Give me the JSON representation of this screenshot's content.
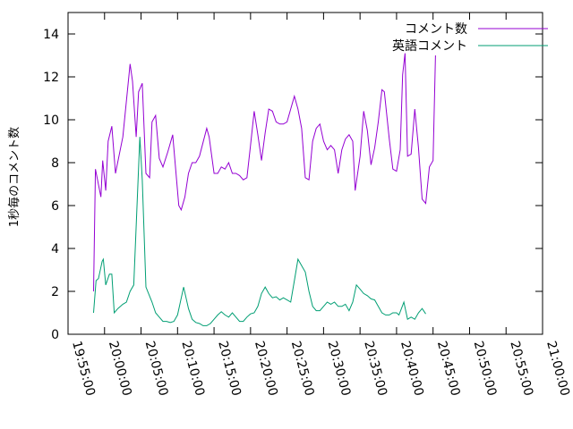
{
  "chart_data": {
    "type": "line",
    "title": "",
    "xlabel": "",
    "ylabel": "1秒毎のコメント数",
    "x_time_range": [
      "19:55:00",
      "21:00:00"
    ],
    "ylim": [
      0,
      15
    ],
    "yticks": [
      0,
      2,
      4,
      6,
      8,
      10,
      12,
      14
    ],
    "xticks": [
      "19:55:00",
      "20:00:00",
      "20:05:00",
      "20:10:00",
      "20:15:00",
      "20:20:00",
      "20:25:00",
      "20:30:00",
      "20:35:00",
      "20:40:00",
      "20:45:00",
      "20:50:00",
      "20:55:00",
      "21:00:00"
    ],
    "grid": false,
    "legend_position": "top-right",
    "series": [
      {
        "name": "コメント数",
        "color": "#9400d3",
        "points": [
          [
            "19:58:30",
            2.0
          ],
          [
            "19:58:45",
            7.7
          ],
          [
            "19:59:30",
            6.4
          ],
          [
            "19:59:45",
            8.1
          ],
          [
            "20:00:10",
            6.7
          ],
          [
            "20:00:30",
            9.0
          ],
          [
            "20:01:00",
            9.7
          ],
          [
            "20:01:30",
            7.5
          ],
          [
            "20:02:30",
            9.2
          ],
          [
            "20:03:30",
            12.6
          ],
          [
            "20:03:50",
            11.8
          ],
          [
            "20:04:20",
            9.2
          ],
          [
            "20:04:40",
            11.3
          ],
          [
            "20:05:10",
            11.7
          ],
          [
            "20:05:40",
            7.5
          ],
          [
            "20:06:10",
            7.3
          ],
          [
            "20:06:30",
            9.9
          ],
          [
            "20:07:00",
            10.2
          ],
          [
            "20:07:30",
            8.2
          ],
          [
            "20:08:00",
            7.8
          ],
          [
            "20:08:40",
            8.5
          ],
          [
            "20:09:20",
            9.3
          ],
          [
            "20:10:10",
            6.0
          ],
          [
            "20:10:30",
            5.8
          ],
          [
            "20:11:00",
            6.4
          ],
          [
            "20:11:30",
            7.5
          ],
          [
            "20:12:00",
            8.0
          ],
          [
            "20:12:30",
            8.0
          ],
          [
            "20:13:00",
            8.3
          ],
          [
            "20:14:00",
            9.6
          ],
          [
            "20:14:20",
            9.2
          ],
          [
            "20:15:00",
            7.5
          ],
          [
            "20:15:30",
            7.5
          ],
          [
            "20:16:00",
            7.8
          ],
          [
            "20:16:30",
            7.7
          ],
          [
            "20:17:00",
            8.0
          ],
          [
            "20:17:30",
            7.5
          ],
          [
            "20:18:00",
            7.5
          ],
          [
            "20:18:30",
            7.4
          ],
          [
            "20:19:00",
            7.2
          ],
          [
            "20:19:30",
            7.3
          ],
          [
            "20:20:00",
            8.8
          ],
          [
            "20:20:30",
            10.4
          ],
          [
            "20:21:00",
            9.3
          ],
          [
            "20:21:30",
            8.1
          ],
          [
            "20:22:00",
            9.4
          ],
          [
            "20:22:30",
            10.5
          ],
          [
            "20:23:00",
            10.4
          ],
          [
            "20:23:30",
            9.9
          ],
          [
            "20:24:00",
            9.8
          ],
          [
            "20:24:30",
            9.8
          ],
          [
            "20:25:00",
            9.9
          ],
          [
            "20:25:30",
            10.5
          ],
          [
            "20:26:00",
            11.1
          ],
          [
            "20:26:30",
            10.5
          ],
          [
            "20:27:00",
            9.6
          ],
          [
            "20:27:30",
            7.3
          ],
          [
            "20:28:00",
            7.2
          ],
          [
            "20:28:30",
            9.0
          ],
          [
            "20:29:00",
            9.6
          ],
          [
            "20:29:30",
            9.8
          ],
          [
            "20:30:00",
            9.0
          ],
          [
            "20:30:30",
            8.6
          ],
          [
            "20:31:00",
            8.8
          ],
          [
            "20:31:30",
            8.6
          ],
          [
            "20:32:00",
            7.5
          ],
          [
            "20:32:30",
            8.6
          ],
          [
            "20:33:00",
            9.1
          ],
          [
            "20:33:30",
            9.3
          ],
          [
            "20:34:00",
            9.0
          ],
          [
            "20:34:20",
            6.7
          ],
          [
            "20:35:00",
            8.3
          ],
          [
            "20:35:30",
            10.4
          ],
          [
            "20:36:00",
            9.5
          ],
          [
            "20:36:30",
            7.9
          ],
          [
            "20:37:00",
            8.7
          ],
          [
            "20:37:30",
            9.9
          ],
          [
            "20:38:00",
            11.4
          ],
          [
            "20:38:20",
            11.3
          ],
          [
            "20:39:00",
            9.1
          ],
          [
            "20:39:30",
            7.7
          ],
          [
            "20:40:00",
            7.6
          ],
          [
            "20:40:30",
            8.6
          ],
          [
            "20:40:50",
            12.1
          ],
          [
            "20:41:10",
            13.1
          ],
          [
            "20:41:30",
            8.3
          ],
          [
            "20:42:00",
            8.4
          ],
          [
            "20:42:30",
            10.5
          ],
          [
            "20:43:00",
            8.7
          ],
          [
            "20:43:30",
            6.3
          ],
          [
            "20:44:00",
            6.1
          ],
          [
            "20:44:30",
            7.8
          ],
          [
            "20:45:00",
            8.1
          ],
          [
            "20:45:20",
            13.0
          ]
        ]
      },
      {
        "name": "英語コメント",
        "color": "#009e73",
        "points": [
          [
            "19:58:30",
            1.0
          ],
          [
            "19:58:50",
            2.5
          ],
          [
            "19:59:10",
            2.6
          ],
          [
            "19:59:40",
            3.4
          ],
          [
            "19:59:50",
            3.5
          ],
          [
            "20:00:10",
            2.3
          ],
          [
            "20:00:40",
            2.8
          ],
          [
            "20:01:00",
            2.8
          ],
          [
            "20:01:20",
            1.0
          ],
          [
            "20:01:50",
            1.2
          ],
          [
            "20:02:30",
            1.4
          ],
          [
            "20:03:00",
            1.5
          ],
          [
            "20:03:30",
            2.0
          ],
          [
            "20:04:00",
            2.3
          ],
          [
            "20:04:50",
            9.2
          ],
          [
            "20:05:10",
            7.2
          ],
          [
            "20:05:40",
            2.2
          ],
          [
            "20:06:30",
            1.5
          ],
          [
            "20:07:00",
            1.0
          ],
          [
            "20:07:30",
            0.8
          ],
          [
            "20:08:00",
            0.6
          ],
          [
            "20:08:30",
            0.6
          ],
          [
            "20:09:00",
            0.55
          ],
          [
            "20:09:30",
            0.6
          ],
          [
            "20:10:00",
            0.9
          ],
          [
            "20:10:50",
            2.2
          ],
          [
            "20:11:30",
            1.2
          ],
          [
            "20:12:00",
            0.7
          ],
          [
            "20:12:30",
            0.55
          ],
          [
            "20:13:00",
            0.5
          ],
          [
            "20:13:30",
            0.4
          ],
          [
            "20:14:00",
            0.4
          ],
          [
            "20:14:30",
            0.5
          ],
          [
            "20:15:00",
            0.7
          ],
          [
            "20:15:30",
            0.9
          ],
          [
            "20:16:00",
            1.05
          ],
          [
            "20:16:30",
            0.9
          ],
          [
            "20:17:00",
            0.8
          ],
          [
            "20:17:30",
            1.0
          ],
          [
            "20:18:00",
            0.8
          ],
          [
            "20:18:30",
            0.6
          ],
          [
            "20:19:00",
            0.6
          ],
          [
            "20:19:30",
            0.8
          ],
          [
            "20:20:00",
            0.95
          ],
          [
            "20:20:30",
            1.0
          ],
          [
            "20:21:00",
            1.3
          ],
          [
            "20:21:30",
            1.9
          ],
          [
            "20:22:00",
            2.2
          ],
          [
            "20:22:30",
            1.9
          ],
          [
            "20:23:00",
            1.7
          ],
          [
            "20:23:30",
            1.75
          ],
          [
            "20:24:00",
            1.6
          ],
          [
            "20:24:30",
            1.7
          ],
          [
            "20:25:00",
            1.6
          ],
          [
            "20:25:30",
            1.5
          ],
          [
            "20:26:00",
            2.5
          ],
          [
            "20:26:30",
            3.5
          ],
          [
            "20:27:00",
            3.2
          ],
          [
            "20:27:30",
            2.9
          ],
          [
            "20:28:00",
            2.0
          ],
          [
            "20:28:30",
            1.3
          ],
          [
            "20:29:00",
            1.1
          ],
          [
            "20:29:30",
            1.1
          ],
          [
            "20:30:00",
            1.3
          ],
          [
            "20:30:30",
            1.5
          ],
          [
            "20:31:00",
            1.4
          ],
          [
            "20:31:30",
            1.5
          ],
          [
            "20:32:00",
            1.3
          ],
          [
            "20:32:30",
            1.3
          ],
          [
            "20:33:00",
            1.4
          ],
          [
            "20:33:30",
            1.1
          ],
          [
            "20:34:00",
            1.5
          ],
          [
            "20:34:30",
            2.3
          ],
          [
            "20:35:00",
            2.1
          ],
          [
            "20:35:30",
            1.9
          ],
          [
            "20:36:00",
            1.8
          ],
          [
            "20:36:30",
            1.65
          ],
          [
            "20:37:00",
            1.6
          ],
          [
            "20:37:30",
            1.3
          ],
          [
            "20:38:00",
            1.0
          ],
          [
            "20:38:30",
            0.9
          ],
          [
            "20:39:00",
            0.9
          ],
          [
            "20:39:30",
            1.0
          ],
          [
            "20:40:00",
            1.0
          ],
          [
            "20:40:20",
            0.9
          ],
          [
            "20:40:40",
            1.2
          ],
          [
            "20:41:00",
            1.5
          ],
          [
            "20:41:30",
            0.7
          ],
          [
            "20:42:00",
            0.8
          ],
          [
            "20:42:30",
            0.7
          ],
          [
            "20:43:00",
            1.0
          ],
          [
            "20:43:30",
            1.2
          ],
          [
            "20:44:00",
            0.95
          ]
        ]
      }
    ]
  }
}
